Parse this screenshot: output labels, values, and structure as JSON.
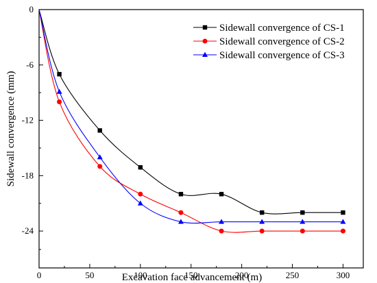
{
  "chart_data": {
    "type": "line",
    "title": "",
    "xlabel": "Excavation face advancement (m)",
    "ylabel": "Sidewall convergence  (mm)",
    "xlim": [
      0,
      320
    ],
    "ylim": [
      -28,
      0
    ],
    "xticks": [
      0,
      50,
      100,
      150,
      200,
      250,
      300
    ],
    "yticks": [
      0,
      -6,
      -12,
      -18,
      -24
    ],
    "grid": false,
    "legend_position": "top-right",
    "series": [
      {
        "name": "Sidewall convergence of CS-1",
        "color": "#000000",
        "marker": "square",
        "x": [
          0,
          20,
          60,
          100,
          140,
          180,
          220,
          260,
          300
        ],
        "y": [
          0,
          -7.0,
          -13.1,
          -17.1,
          -20.0,
          -20.0,
          -22.0,
          -22.0,
          -22.0
        ]
      },
      {
        "name": "Sidewall convergence of CS-2",
        "color": "#ff0000",
        "marker": "circle",
        "x": [
          0,
          20,
          60,
          100,
          140,
          180,
          220,
          260,
          300
        ],
        "y": [
          0,
          -10.0,
          -17.0,
          -20.0,
          -22.0,
          -24.0,
          -24.0,
          -24.0,
          -24.0
        ]
      },
      {
        "name": "Sidewall convergence of CS-3",
        "color": "#0000ff",
        "marker": "triangle",
        "x": [
          0,
          20,
          60,
          100,
          140,
          180,
          220,
          260,
          300
        ],
        "y": [
          0,
          -8.9,
          -16.0,
          -21.0,
          -23.0,
          -23.0,
          -23.0,
          -23.0,
          -23.0
        ]
      }
    ]
  }
}
